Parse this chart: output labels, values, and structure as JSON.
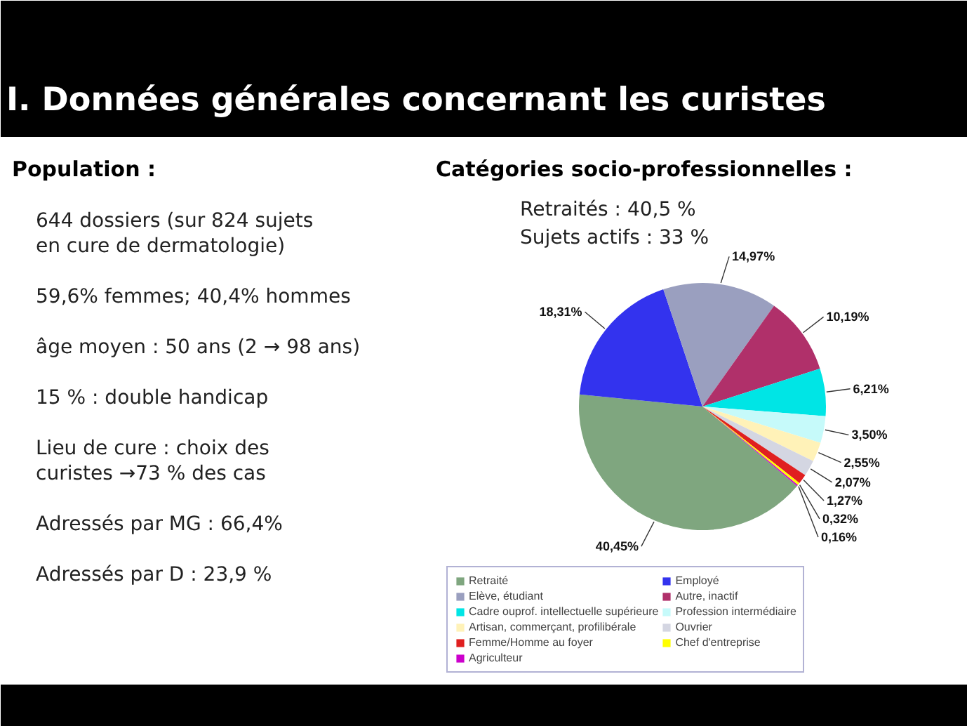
{
  "chart_data": {
    "type": "pie",
    "title": "I. Données générales concernant les curistes",
    "subtitle": "Catégories socio-professionnelles :",
    "categories": [
      "Retraité",
      "Employé",
      "Elève, étudiant",
      "Autre, inactif",
      "Cadre ouprof. intellectuelle supérieure",
      "Profession intermédiaire",
      "Artisan, commerçant, profilibérale",
      "Ouvrier",
      "Femme/Homme au foyer",
      "Chef d'entreprise",
      "Agriculteur"
    ],
    "values": [
      40.45,
      18.31,
      14.97,
      10.19,
      6.21,
      3.5,
      2.55,
      2.07,
      1.27,
      0.32,
      0.16
    ],
    "colors": [
      "#7fa67f",
      "#3333ee",
      "#9a9fbf",
      "#b0306a",
      "#00e5e5",
      "#c6fafa",
      "#fff2b8",
      "#d4d6e2",
      "#e02020",
      "#ffff00",
      "#cc00cc"
    ],
    "value_labels": [
      "40,45%",
      "18,31%",
      "14,97%",
      "10,19%",
      "6,21%",
      "3,50%",
      "2,55%",
      "2,07%",
      "1,27%",
      "0,32%",
      "0,16%"
    ],
    "legend": "bottom",
    "annotations": [
      "Population :",
      "644 dossiers (sur 824 sujets en cure de dermatologie)",
      "59,6% femmes; 40,4% hommes",
      "âge moyen : 50 ans (2 → 98 ans)",
      "15 % : double handicap",
      "Lieu de cure : choix des curistes →73 % des cas",
      "Adressés par MG : 66,4%",
      "Adressés par D : 23,9 %",
      "Retraités : 40,5 %",
      "Sujets actifs : 33 %"
    ]
  }
}
